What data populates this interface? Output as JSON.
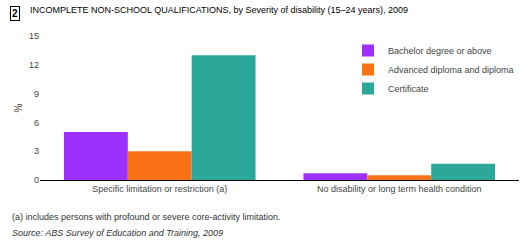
{
  "chart_data": {
    "type": "bar",
    "title": "INCOMPLETE NON-SCHOOL QUALIFICATIONS, by Severity of disability (15–24 years), 2009",
    "ylabel": "%",
    "categories": [
      "Specific limitation or restriction (a)",
      "No disability or long term health condition"
    ],
    "series": [
      {
        "name": "Bachelor degree or above",
        "color": "#9B30FF",
        "values": [
          5.0,
          0.7
        ]
      },
      {
        "name": "Advanced diploma and diploma",
        "color": "#F97316",
        "values": [
          3.0,
          0.5
        ]
      },
      {
        "name": "Certificate",
        "color": "#2BA899",
        "values": [
          13.0,
          1.7
        ]
      }
    ],
    "ylim": [
      0,
      15
    ],
    "yticks": [
      0,
      3,
      6,
      9,
      12,
      15
    ],
    "grid": false,
    "legend": "upper right",
    "annotations": [
      "2",
      "(a) includes persons with profound or severe core-activity limitation.",
      "Source: ABS Survey of Education and Training, 2009"
    ]
  }
}
